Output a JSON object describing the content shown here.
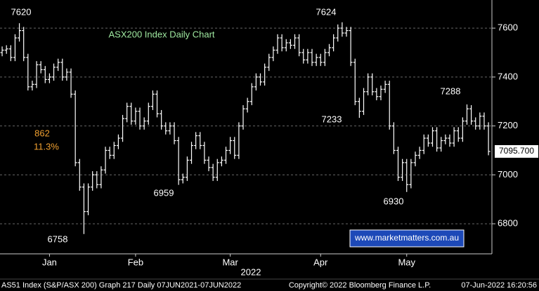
{
  "chart_data": {
    "type": "ohlc",
    "title": "ASX200 Index Daily Chart",
    "color": "#ffffff",
    "title_color": "#9fe8a0",
    "open": [
      7500,
      7510,
      7515,
      7480,
      7560,
      7590,
      7480,
      7360,
      7370,
      7450,
      7430,
      7390,
      7400,
      7440,
      7460,
      7400,
      7420,
      7330,
      7050,
      6950,
      6850,
      6950,
      7000,
      6960,
      7020,
      7100,
      7080,
      7120,
      7150,
      7230,
      7280,
      7220,
      7260,
      7200,
      7220,
      7280,
      7330,
      7250,
      7200,
      7180,
      7200,
      7140,
      6980,
      6990,
      7060,
      7120,
      7160,
      7120,
      7060,
      7030,
      6990,
      7050,
      7060,
      7100,
      7140,
      7080,
      7200,
      7270,
      7300,
      7360,
      7400,
      7380,
      7440,
      7480,
      7510,
      7560,
      7520,
      7540,
      7530,
      7560,
      7500,
      7470,
      7500,
      7460,
      7480,
      7460,
      7500,
      7520,
      7560,
      7600,
      7580,
      7590,
      7460,
      7300,
      7260,
      7340,
      7400,
      7340,
      7320,
      7350,
      7370,
      7200,
      7100,
      6990,
      7050,
      6960,
      7050,
      7080,
      7100,
      7150,
      7130,
      7180,
      7110,
      7140,
      7150,
      7130,
      7180,
      7150,
      7220,
      7270,
      7220,
      7200,
      7240,
      7200
    ],
    "high": [
      7525,
      7530,
      7530,
      7575,
      7620,
      7605,
      7495,
      7385,
      7465,
      7465,
      7445,
      7415,
      7455,
      7475,
      7475,
      7435,
      7435,
      7345,
      7065,
      6965,
      6965,
      7015,
      7015,
      7035,
      7115,
      7115,
      7135,
      7165,
      7245,
      7295,
      7295,
      7275,
      7275,
      7235,
      7295,
      7345,
      7345,
      7265,
      7215,
      7215,
      7215,
      7155,
      7005,
      7075,
      7135,
      7175,
      7175,
      7135,
      7075,
      7045,
      7065,
      7075,
      7115,
      7155,
      7155,
      7215,
      7285,
      7315,
      7375,
      7415,
      7415,
      7455,
      7495,
      7525,
      7575,
      7575,
      7555,
      7555,
      7575,
      7575,
      7515,
      7515,
      7515,
      7495,
      7495,
      7515,
      7535,
      7575,
      7615,
      7624,
      7605,
      7605,
      7475,
      7315,
      7355,
      7415,
      7415,
      7355,
      7365,
      7385,
      7385,
      7215,
      7115,
      7065,
      7065,
      7065,
      7095,
      7115,
      7165,
      7165,
      7195,
      7195,
      7155,
      7165,
      7165,
      7195,
      7195,
      7235,
      7288,
      7285,
      7235,
      7255,
      7255,
      7215
    ],
    "low": [
      7485,
      7495,
      7465,
      7465,
      7545,
      7465,
      7345,
      7345,
      7355,
      7415,
      7375,
      7375,
      7385,
      7425,
      7385,
      7385,
      7315,
      7035,
      6935,
      6758,
      6835,
      6935,
      6945,
      6945,
      7005,
      7065,
      7065,
      7105,
      7135,
      7215,
      7205,
      7205,
      7185,
      7185,
      7205,
      7265,
      7235,
      7185,
      7165,
      7165,
      7125,
      6959,
      6965,
      6975,
      7045,
      7105,
      7105,
      7045,
      7015,
      6975,
      6975,
      7035,
      7045,
      7085,
      7065,
      7065,
      7185,
      7255,
      7285,
      7345,
      7365,
      7365,
      7425,
      7465,
      7495,
      7505,
      7505,
      7515,
      7515,
      7485,
      7455,
      7455,
      7445,
      7445,
      7445,
      7445,
      7485,
      7505,
      7545,
      7565,
      7565,
      7445,
      7285,
      7233,
      7245,
      7325,
      7325,
      7305,
      7305,
      7335,
      7185,
      7085,
      6975,
      6975,
      6930,
      6945,
      7035,
      7065,
      7085,
      7115,
      7115,
      7095,
      7095,
      7125,
      7115,
      7115,
      7135,
      7135,
      7205,
      7205,
      7185,
      7185,
      7185,
      7080
    ],
    "close": [
      7510,
      7515,
      7480,
      7560,
      7590,
      7480,
      7360,
      7370,
      7450,
      7430,
      7390,
      7400,
      7440,
      7460,
      7400,
      7420,
      7330,
      7050,
      6950,
      6850,
      6950,
      7000,
      6960,
      7020,
      7100,
      7080,
      7120,
      7150,
      7230,
      7280,
      7220,
      7260,
      7200,
      7220,
      7280,
      7330,
      7250,
      7200,
      7180,
      7200,
      7140,
      6980,
      6990,
      7060,
      7120,
      7160,
      7120,
      7060,
      7030,
      6990,
      7050,
      7060,
      7100,
      7140,
      7080,
      7200,
      7270,
      7300,
      7360,
      7400,
      7380,
      7440,
      7480,
      7510,
      7560,
      7520,
      7540,
      7530,
      7560,
      7500,
      7470,
      7500,
      7460,
      7480,
      7460,
      7500,
      7520,
      7560,
      7600,
      7580,
      7590,
      7460,
      7300,
      7260,
      7340,
      7400,
      7340,
      7320,
      7350,
      7370,
      7200,
      7100,
      6990,
      7050,
      6960,
      7050,
      7080,
      7100,
      7150,
      7130,
      7180,
      7110,
      7140,
      7150,
      7130,
      7180,
      7150,
      7220,
      7270,
      7220,
      7200,
      7240,
      7200,
      7095.7
    ],
    "last_label": "7095.700",
    "xlim": [
      -0.5,
      113.8
    ],
    "xticks": [
      {
        "value": 11,
        "label": "Jan"
      },
      {
        "value": 31,
        "label": "Feb"
      },
      {
        "value": 53,
        "label": "Mar"
      },
      {
        "value": 74,
        "label": "Apr"
      },
      {
        "value": 94,
        "label": "May"
      }
    ],
    "xlabel": "2022",
    "ylim": [
      6677,
      7715
    ],
    "yticks": [
      6800,
      7000,
      7200,
      7400,
      7600
    ],
    "grid": true,
    "annotations": [
      "7620",
      "7624",
      "7233",
      "7288",
      "6959",
      "6930",
      "6758",
      "862",
      "11.3%"
    ],
    "annotation_color": "#f0a030",
    "watermark": "www.marketmatters.com.au",
    "footer": {
      "left": "AS51 Index (S&P/ASX 200) Graph 217  Daily 07JUN2021-07JUN2022",
      "center": "Copyright© 2022 Bloomberg Finance L.P.",
      "right": "07-Jun-2022 16:20:56"
    }
  }
}
